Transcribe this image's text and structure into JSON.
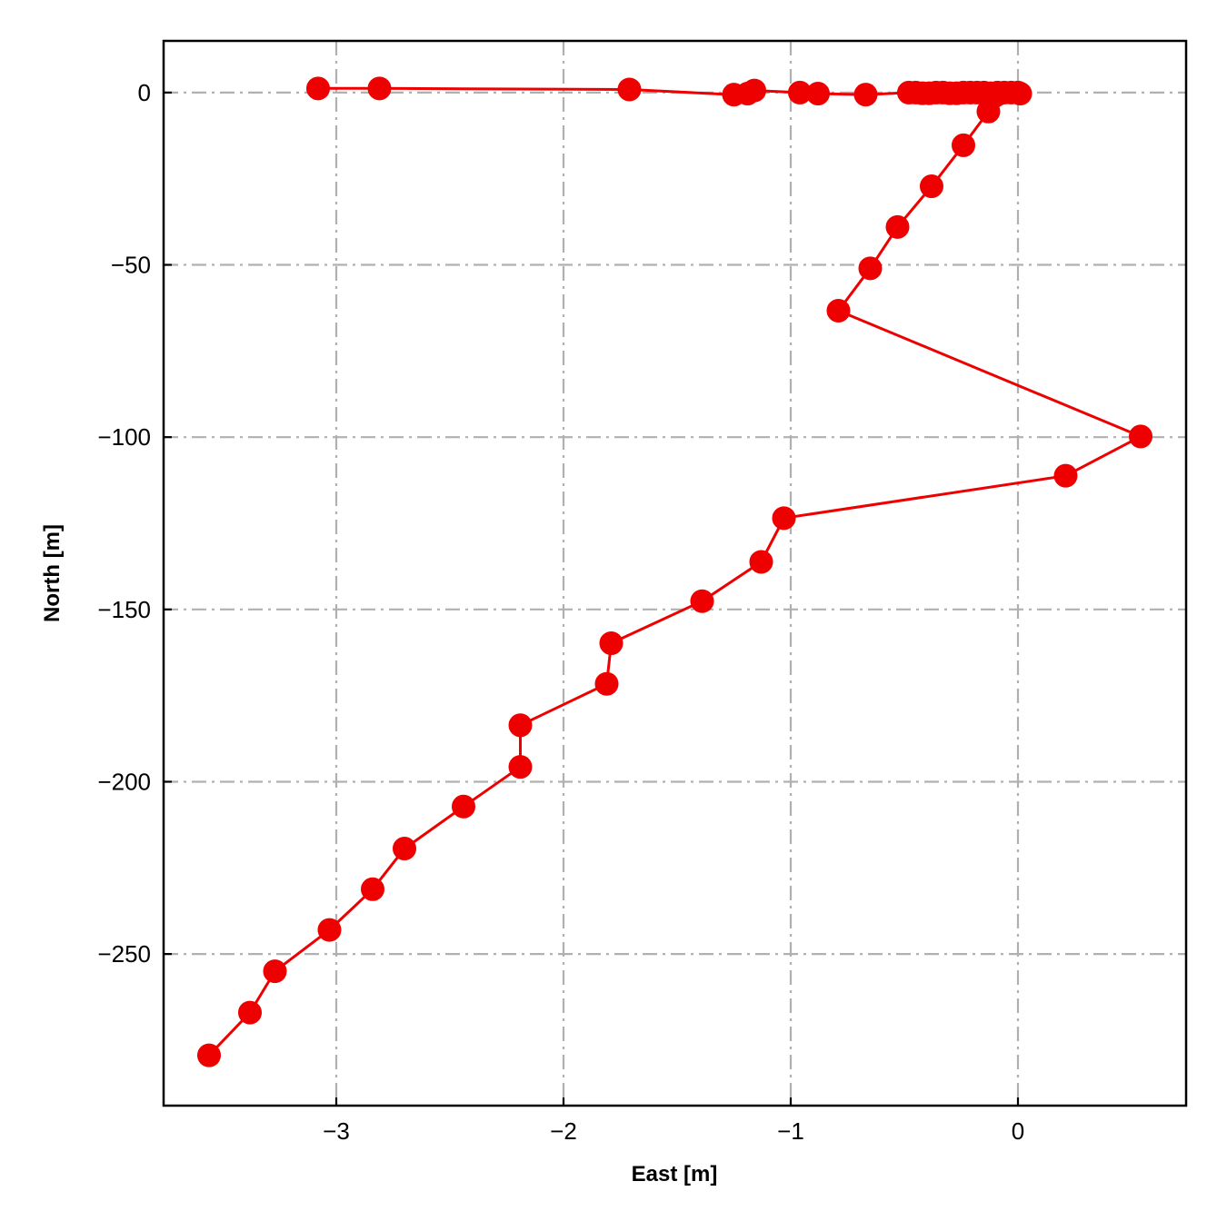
{
  "chart_data": {
    "type": "line",
    "title": "",
    "xlabel": "East [m]",
    "ylabel": "North [m]",
    "xlim": [
      -3.76,
      0.74
    ],
    "ylim": [
      -294,
      15
    ],
    "xticks": [
      -3,
      -2,
      -1,
      0
    ],
    "xtick_labels": [
      "−3",
      "−2",
      "−1",
      "0"
    ],
    "yticks": [
      0,
      -50,
      -100,
      -150,
      -200,
      -250
    ],
    "ytick_labels": [
      "0",
      "−50",
      "−100",
      "−150",
      "−200",
      "−250"
    ],
    "grid": true,
    "legend": false,
    "colors": {
      "series": "#ee0000",
      "grid": "#b0b0b0",
      "axes": "#000000",
      "background": "#ffffff"
    },
    "series": [
      {
        "marker": "circle",
        "x": [
          -3.08,
          -2.81,
          -1.71,
          -1.25,
          -1.19,
          -1.16,
          -0.96,
          -0.88,
          -0.67,
          -0.48,
          -0.45,
          -0.42,
          -0.39,
          -0.36,
          -0.33,
          -0.3,
          -0.27,
          -0.24,
          -0.21,
          -0.18,
          -0.15,
          -0.12,
          -0.09,
          -0.06,
          -0.03,
          0.0,
          0.01,
          -0.13,
          -0.24,
          -0.38,
          -0.53,
          -0.65,
          -0.79,
          0.54,
          0.21,
          -1.03,
          -1.13,
          -1.39,
          -1.79,
          -1.81,
          -2.19,
          -2.19,
          -2.44,
          -2.7,
          -2.84,
          -3.03,
          -3.27,
          -3.38,
          -3.56
        ],
        "y": [
          1.2,
          1.2,
          0.9,
          -0.6,
          -0.3,
          0.6,
          0.0,
          -0.3,
          -0.6,
          0.0,
          0.0,
          -0.2,
          -0.2,
          0.0,
          0.0,
          -0.2,
          -0.2,
          0.0,
          0.0,
          0.0,
          0.0,
          -0.2,
          0.0,
          0.0,
          0.0,
          0.0,
          -0.3,
          -5.5,
          -15.3,
          -27.2,
          -39.0,
          -51.0,
          -63.3,
          -99.8,
          -111.2,
          -123.5,
          -136.2,
          -147.6,
          -159.8,
          -171.6,
          -183.6,
          -195.7,
          -207.2,
          -219.4,
          -231.2,
          -243.0,
          -255.0,
          -267.0,
          -279.4
        ]
      }
    ]
  }
}
